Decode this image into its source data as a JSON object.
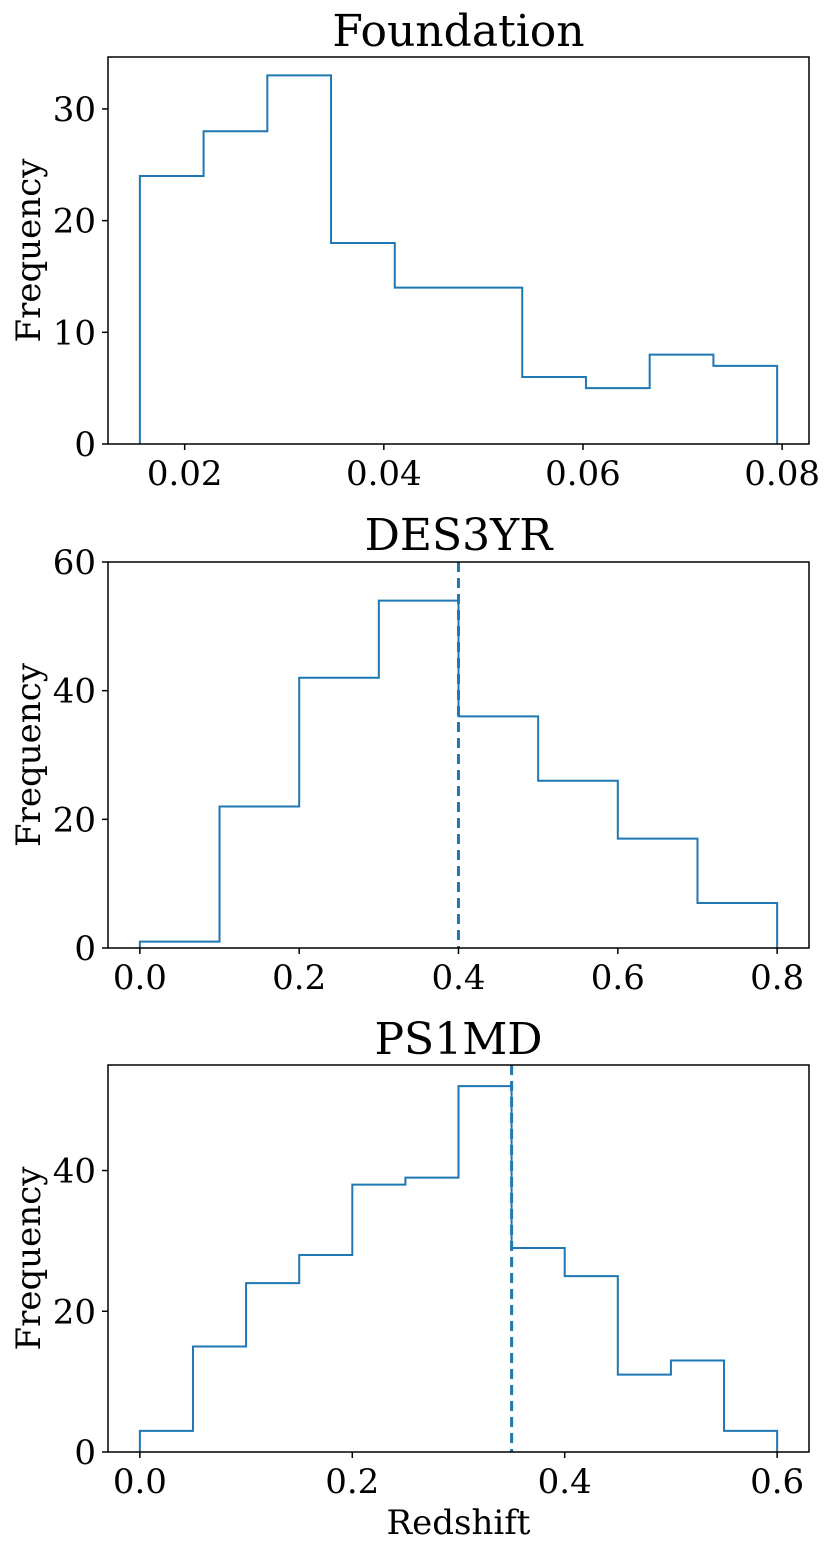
{
  "chart_data": [
    {
      "type": "histogram",
      "title": "Foundation",
      "xlabel": "",
      "ylabel": "Frequency",
      "bin_edges": [
        0.0155,
        0.0219,
        0.0283,
        0.0347,
        0.0411,
        0.0475,
        0.0539,
        0.0603,
        0.0667,
        0.0731,
        0.0795
      ],
      "counts": [
        24,
        28,
        33,
        18,
        14,
        14,
        6,
        5,
        8,
        7
      ],
      "xlim": [
        0.0123,
        0.0827
      ],
      "ylim": [
        0,
        34.65
      ],
      "xticks": [
        0.02,
        0.04,
        0.06,
        0.08
      ],
      "xtick_labels": [
        "0.02",
        "0.04",
        "0.06",
        "0.08"
      ],
      "yticks": [
        0,
        10,
        20,
        30
      ],
      "ytick_labels": [
        "0",
        "10",
        "20",
        "30"
      ],
      "vline": null
    },
    {
      "type": "histogram",
      "title": "DES3YR",
      "xlabel": "",
      "ylabel": "Frequency",
      "bin_edges": [
        0.0,
        0.1,
        0.2,
        0.3,
        0.4,
        0.5,
        0.6,
        0.7,
        0.8
      ],
      "counts": [
        1,
        22,
        42,
        54,
        36,
        26,
        17,
        7
      ],
      "xlim": [
        -0.04,
        0.84
      ],
      "ylim": [
        0,
        60
      ],
      "xticks": [
        0.0,
        0.2,
        0.4,
        0.6,
        0.8
      ],
      "xtick_labels": [
        "0.0",
        "0.2",
        "0.4",
        "0.6",
        "0.8"
      ],
      "yticks": [
        0,
        20,
        40,
        60
      ],
      "ytick_labels": [
        "0",
        "20",
        "40",
        "60"
      ],
      "vline": 0.4
    },
    {
      "type": "histogram",
      "title": "PS1MD",
      "xlabel": "Redshift",
      "ylabel": "Frequency",
      "bin_edges": [
        0.0,
        0.05,
        0.1,
        0.15,
        0.2,
        0.25,
        0.3,
        0.35,
        0.4,
        0.45,
        0.5,
        0.55,
        0.6
      ],
      "counts": [
        3,
        15,
        24,
        28,
        38,
        39,
        52,
        29,
        25,
        11,
        13,
        3
      ],
      "xlim": [
        -0.03,
        0.63
      ],
      "ylim": [
        0,
        55
      ],
      "xticks": [
        0.0,
        0.2,
        0.4,
        0.6
      ],
      "xtick_labels": [
        "0.0",
        "0.2",
        "0.4",
        "0.6"
      ],
      "yticks": [
        0,
        20,
        40
      ],
      "ytick_labels": [
        "0",
        "20",
        "40"
      ],
      "vline": 0.35
    }
  ]
}
